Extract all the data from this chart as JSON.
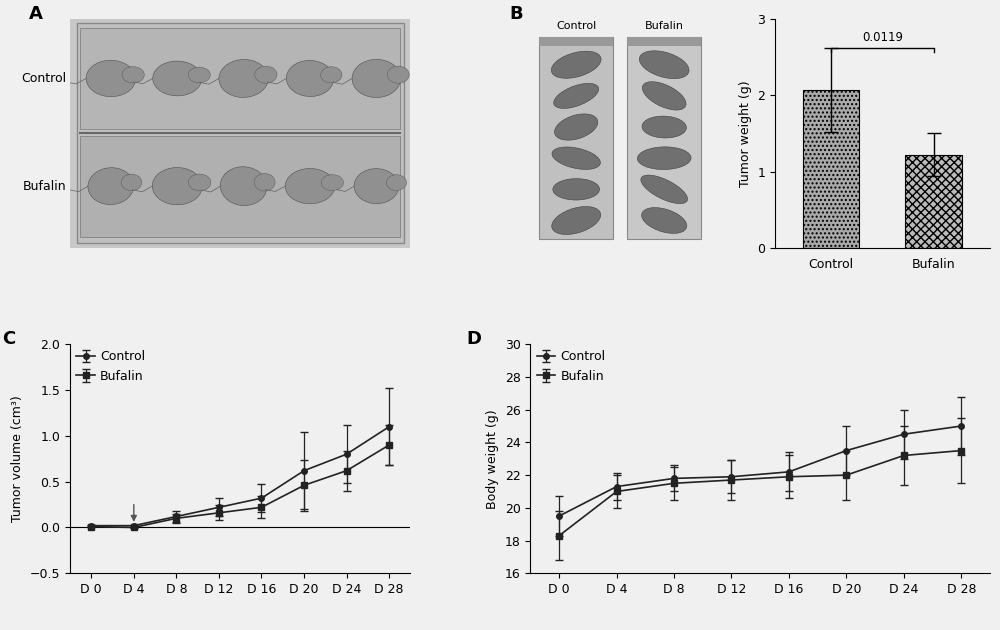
{
  "panel_labels": [
    "A",
    "B",
    "C",
    "D"
  ],
  "bar_categories": [
    "Control",
    "Bufalin"
  ],
  "bar_values": [
    2.07,
    1.22
  ],
  "bar_errors": [
    0.55,
    0.28
  ],
  "bar_color_control": "#aaaaaa",
  "bar_color_bufalin": "#bbbbbb",
  "bar_hatch_control": "....",
  "bar_hatch_bufalin": "xxxx",
  "bar_ylabel": "Tumor weight (g)",
  "bar_ylim": [
    0,
    3.0
  ],
  "bar_yticks": [
    0,
    1,
    2,
    3
  ],
  "bar_pvalue": "0.0119",
  "days": [
    "D 0",
    "D 4",
    "D 8",
    "D 12",
    "D 16",
    "D 20",
    "D 24",
    "D 28"
  ],
  "tumor_control_mean": [
    0.02,
    0.02,
    0.12,
    0.22,
    0.32,
    0.62,
    0.8,
    1.1
  ],
  "tumor_control_err": [
    0.01,
    0.01,
    0.06,
    0.1,
    0.15,
    0.42,
    0.32,
    0.42
  ],
  "tumor_bufalin_mean": [
    0.01,
    0.0,
    0.1,
    0.16,
    0.22,
    0.46,
    0.62,
    0.9
  ],
  "tumor_bufalin_err": [
    0.01,
    0.01,
    0.05,
    0.08,
    0.12,
    0.28,
    0.22,
    0.22
  ],
  "tumor_ylabel": "Tumor volume (cm³)",
  "tumor_ylim": [
    -0.5,
    2.0
  ],
  "tumor_yticks": [
    -0.5,
    0.0,
    0.5,
    1.0,
    1.5,
    2.0
  ],
  "body_control_mean": [
    19.5,
    21.3,
    21.8,
    21.9,
    22.2,
    23.5,
    24.5,
    25.0
  ],
  "body_control_err": [
    1.2,
    0.8,
    0.8,
    1.0,
    1.2,
    1.5,
    1.5,
    1.8
  ],
  "body_bufalin_mean": [
    18.3,
    21.0,
    21.5,
    21.7,
    21.9,
    22.0,
    23.2,
    23.5
  ],
  "body_bufalin_err": [
    1.5,
    1.0,
    1.0,
    1.2,
    1.3,
    1.5,
    1.8,
    2.0
  ],
  "body_ylabel": "Body weight (g)",
  "body_ylim": [
    16,
    30
  ],
  "body_yticks": [
    16,
    18,
    20,
    22,
    24,
    26,
    28,
    30
  ],
  "line_color": "#222222",
  "bg_color": "#f0f0f0",
  "fig_bg": "#f0f0f0",
  "font_size": 9,
  "label_font_size": 13,
  "panel_A_label_control": "Control",
  "panel_A_label_bufalin": "Bufalin",
  "panel_B_col_labels": [
    "Control",
    "Bufalin"
  ]
}
